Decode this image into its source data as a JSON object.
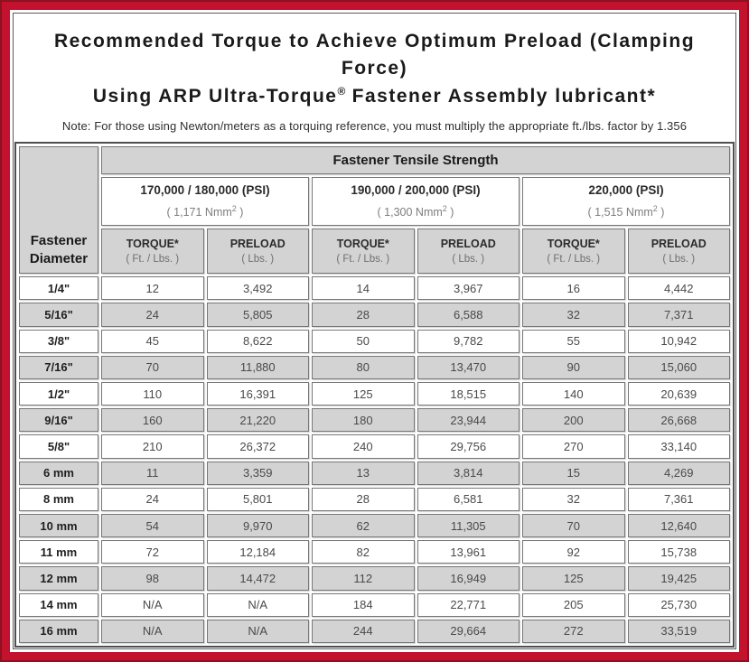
{
  "colors": {
    "frame_red": "#c3122e",
    "frame_dark_edge": "#8f1020",
    "header_grey": "#d3d3d3",
    "grid_border": "#767676",
    "text_dark": "#1a1a1a",
    "text_grey": "#7d7d7d"
  },
  "title": {
    "line1": "Recommended Torque to Achieve Optimum Preload (Clamping Force)",
    "line2_a": "Using ARP Ultra-Torque",
    "line2_reg": "®",
    "line2_b": " Fastener Assembly lubricant*",
    "note": "Note: For those using Newton/meters as a torquing reference, you must multiply the appropriate ft./lbs. factor by 1.356"
  },
  "table": {
    "corner_header": "Fastener Diameter",
    "tensile_header": "Fastener Tensile Strength",
    "groups": [
      {
        "psi": "170,000 / 180,000 (PSI)",
        "nmm": "( 1,171 Nmm",
        "nmm_sup": "2",
        "nmm_close": " )"
      },
      {
        "psi": "190,000 / 200,000 (PSI)",
        "nmm": "( 1,300 Nmm",
        "nmm_sup": "2",
        "nmm_close": " )"
      },
      {
        "psi": "220,000 (PSI)",
        "nmm": "( 1,515 Nmm",
        "nmm_sup": "2",
        "nmm_close": " )"
      }
    ],
    "col_headers": {
      "torque": "TORQUE*",
      "torque_sub": "( Ft. / Lbs. )",
      "preload": "PRELOAD",
      "preload_sub": "( Lbs. )"
    },
    "rows": [
      {
        "diameter": "1/4\"",
        "values": [
          "12",
          "3,492",
          "14",
          "3,967",
          "16",
          "4,442"
        ]
      },
      {
        "diameter": "5/16\"",
        "values": [
          "24",
          "5,805",
          "28",
          "6,588",
          "32",
          "7,371"
        ]
      },
      {
        "diameter": "3/8\"",
        "values": [
          "45",
          "8,622",
          "50",
          "9,782",
          "55",
          "10,942"
        ]
      },
      {
        "diameter": "7/16\"",
        "values": [
          "70",
          "11,880",
          "80",
          "13,470",
          "90",
          "15,060"
        ]
      },
      {
        "diameter": "1/2\"",
        "values": [
          "110",
          "16,391",
          "125",
          "18,515",
          "140",
          "20,639"
        ]
      },
      {
        "diameter": "9/16\"",
        "values": [
          "160",
          "21,220",
          "180",
          "23,944",
          "200",
          "26,668"
        ]
      },
      {
        "diameter": "5/8\"",
        "values": [
          "210",
          "26,372",
          "240",
          "29,756",
          "270",
          "33,140"
        ]
      },
      {
        "diameter": "6 mm",
        "values": [
          "11",
          "3,359",
          "13",
          "3,814",
          "15",
          "4,269"
        ]
      },
      {
        "diameter": "8 mm",
        "values": [
          "24",
          "5,801",
          "28",
          "6,581",
          "32",
          "7,361"
        ]
      },
      {
        "diameter": "10 mm",
        "values": [
          "54",
          "9,970",
          "62",
          "11,305",
          "70",
          "12,640"
        ]
      },
      {
        "diameter": "11 mm",
        "values": [
          "72",
          "12,184",
          "82",
          "13,961",
          "92",
          "15,738"
        ]
      },
      {
        "diameter": "12 mm",
        "values": [
          "98",
          "14,472",
          "112",
          "16,949",
          "125",
          "19,425"
        ]
      },
      {
        "diameter": "14 mm",
        "values": [
          "N/A",
          "N/A",
          "184",
          "22,771",
          "205",
          "25,730"
        ]
      },
      {
        "diameter": "16 mm",
        "values": [
          "N/A",
          "N/A",
          "244",
          "29,664",
          "272",
          "33,519"
        ]
      }
    ]
  }
}
